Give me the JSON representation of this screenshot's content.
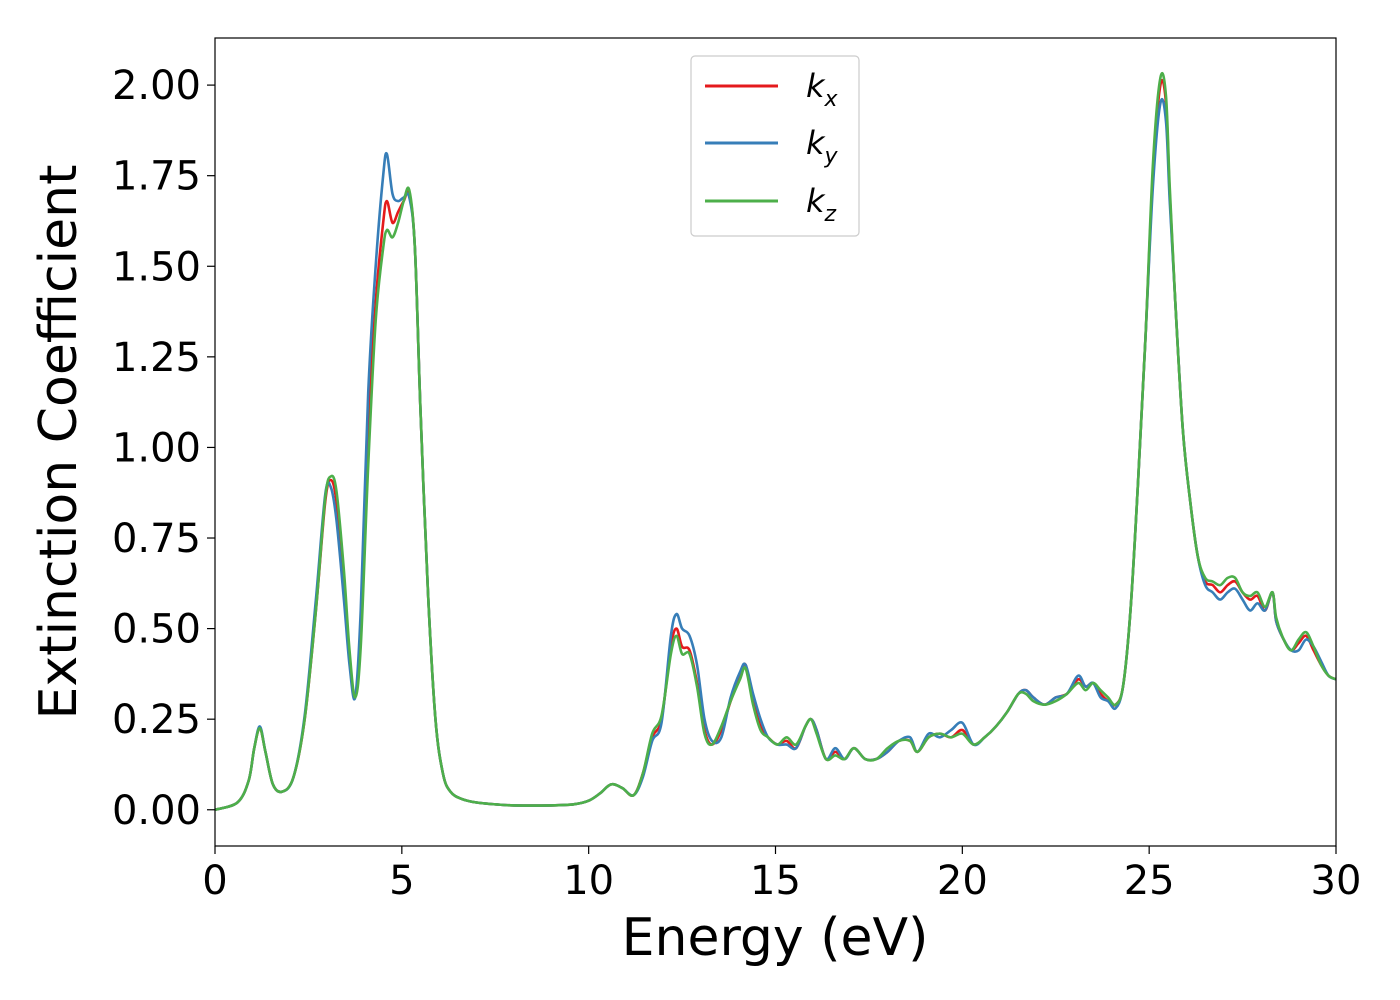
{
  "chart_data": {
    "type": "line",
    "xlabel": "Energy (eV)",
    "ylabel": "Extinction Coefficient",
    "xlim": [
      0,
      30
    ],
    "ylim": [
      -0.1,
      2.13
    ],
    "xticks": [
      "0",
      "5",
      "10",
      "15",
      "20",
      "25",
      "30"
    ],
    "yticks": [
      "0.00",
      "0.25",
      "0.50",
      "0.75",
      "1.00",
      "1.25",
      "1.50",
      "1.75",
      "2.00"
    ],
    "grid": false,
    "legend_position": "top-center",
    "legend": {
      "kx": {
        "base": "k",
        "sub": "x"
      },
      "ky": {
        "base": "k",
        "sub": "y"
      },
      "kz": {
        "base": "k",
        "sub": "z"
      }
    },
    "colors": {
      "kx": "#e41a1c",
      "ky": "#377eb8",
      "kz": "#4daf4a"
    },
    "series": [
      {
        "key": "kx",
        "x": [
          0,
          0.6,
          0.9,
          1.05,
          1.2,
          1.35,
          1.55,
          1.8,
          2.1,
          2.4,
          2.7,
          2.95,
          3.1,
          3.25,
          3.45,
          3.6,
          3.75,
          3.9,
          4.1,
          4.3,
          4.5,
          4.6,
          4.75,
          4.9,
          5.05,
          5.2,
          5.35,
          5.5,
          5.7,
          5.9,
          6.1,
          6.3,
          6.6,
          7,
          7.5,
          8,
          9,
          9.6,
          10,
          10.3,
          10.6,
          10.9,
          11.2,
          11.45,
          11.7,
          11.95,
          12.2,
          12.35,
          12.5,
          12.7,
          12.9,
          13.1,
          13.3,
          13.55,
          13.8,
          14.05,
          14.2,
          14.4,
          14.6,
          14.8,
          15.05,
          15.3,
          15.55,
          15.8,
          15.95,
          16.1,
          16.35,
          16.6,
          16.85,
          17.1,
          17.4,
          17.7,
          18,
          18.3,
          18.6,
          18.8,
          19.1,
          19.4,
          19.7,
          20,
          20.3,
          20.6,
          20.9,
          21.2,
          21.5,
          21.7,
          21.9,
          22.2,
          22.5,
          22.8,
          23.1,
          23.3,
          23.5,
          23.7,
          23.9,
          24.1,
          24.3,
          24.5,
          24.7,
          24.9,
          25.1,
          25.3,
          25.45,
          25.55,
          25.7,
          25.9,
          26.1,
          26.3,
          26.5,
          26.7,
          26.9,
          27.1,
          27.3,
          27.5,
          27.7,
          27.9,
          28.1,
          28.3,
          28.4,
          28.6,
          28.8,
          29,
          29.2,
          29.4,
          29.6,
          29.8,
          30
        ],
        "y": [
          0,
          0.02,
          0.08,
          0.17,
          0.225,
          0.16,
          0.07,
          0.05,
          0.09,
          0.25,
          0.55,
          0.85,
          0.91,
          0.85,
          0.62,
          0.42,
          0.31,
          0.5,
          1.05,
          1.4,
          1.62,
          1.68,
          1.62,
          1.65,
          1.68,
          1.7,
          1.55,
          1.1,
          0.6,
          0.25,
          0.1,
          0.05,
          0.03,
          0.02,
          0.015,
          0.012,
          0.012,
          0.015,
          0.025,
          0.045,
          0.07,
          0.06,
          0.04,
          0.1,
          0.2,
          0.25,
          0.45,
          0.5,
          0.45,
          0.44,
          0.35,
          0.22,
          0.18,
          0.22,
          0.3,
          0.37,
          0.4,
          0.3,
          0.23,
          0.2,
          0.18,
          0.19,
          0.17,
          0.23,
          0.25,
          0.22,
          0.14,
          0.16,
          0.14,
          0.17,
          0.14,
          0.14,
          0.16,
          0.19,
          0.19,
          0.16,
          0.2,
          0.21,
          0.2,
          0.22,
          0.18,
          0.2,
          0.23,
          0.27,
          0.32,
          0.33,
          0.31,
          0.29,
          0.31,
          0.32,
          0.36,
          0.34,
          0.35,
          0.32,
          0.3,
          0.29,
          0.34,
          0.55,
          0.9,
          1.3,
          1.75,
          2,
          1.95,
          1.7,
          1.4,
          1.05,
          0.85,
          0.7,
          0.63,
          0.62,
          0.6,
          0.62,
          0.63,
          0.6,
          0.58,
          0.59,
          0.55,
          0.6,
          0.52,
          0.47,
          0.44,
          0.46,
          0.48,
          0.44,
          0.4,
          0.37,
          0.36
        ]
      },
      {
        "key": "ky",
        "x": [
          0,
          0.6,
          0.9,
          1.05,
          1.2,
          1.35,
          1.55,
          1.8,
          2.1,
          2.4,
          2.7,
          2.95,
          3.1,
          3.25,
          3.45,
          3.6,
          3.75,
          3.9,
          4.1,
          4.3,
          4.5,
          4.6,
          4.75,
          4.9,
          5.05,
          5.2,
          5.35,
          5.5,
          5.7,
          5.9,
          6.1,
          6.3,
          6.6,
          7,
          7.5,
          8,
          9,
          9.6,
          10,
          10.3,
          10.6,
          10.9,
          11.2,
          11.45,
          11.7,
          11.95,
          12.2,
          12.35,
          12.5,
          12.7,
          12.9,
          13.1,
          13.3,
          13.55,
          13.8,
          14.05,
          14.2,
          14.4,
          14.6,
          14.8,
          15.05,
          15.3,
          15.55,
          15.8,
          15.95,
          16.1,
          16.35,
          16.6,
          16.85,
          17.1,
          17.4,
          17.7,
          18,
          18.3,
          18.6,
          18.8,
          19.1,
          19.4,
          19.7,
          20,
          20.3,
          20.6,
          20.9,
          21.2,
          21.5,
          21.7,
          21.9,
          22.2,
          22.5,
          22.8,
          23.1,
          23.3,
          23.5,
          23.7,
          23.9,
          24.1,
          24.3,
          24.5,
          24.7,
          24.9,
          25.1,
          25.3,
          25.45,
          25.55,
          25.7,
          25.9,
          26.1,
          26.3,
          26.5,
          26.7,
          26.9,
          27.1,
          27.3,
          27.5,
          27.7,
          27.9,
          28.1,
          28.3,
          28.4,
          28.6,
          28.8,
          29,
          29.2,
          29.4,
          29.6,
          29.8,
          30
        ],
        "y": [
          0,
          0.02,
          0.08,
          0.17,
          0.23,
          0.16,
          0.07,
          0.05,
          0.09,
          0.26,
          0.58,
          0.87,
          0.89,
          0.8,
          0.58,
          0.4,
          0.31,
          0.55,
          1.15,
          1.5,
          1.75,
          1.81,
          1.7,
          1.68,
          1.69,
          1.69,
          1.55,
          1.1,
          0.6,
          0.25,
          0.1,
          0.05,
          0.03,
          0.02,
          0.015,
          0.012,
          0.012,
          0.015,
          0.025,
          0.045,
          0.07,
          0.06,
          0.04,
          0.09,
          0.19,
          0.24,
          0.48,
          0.54,
          0.5,
          0.48,
          0.4,
          0.25,
          0.19,
          0.2,
          0.31,
          0.38,
          0.4,
          0.32,
          0.25,
          0.2,
          0.18,
          0.18,
          0.17,
          0.23,
          0.25,
          0.22,
          0.14,
          0.17,
          0.14,
          0.17,
          0.14,
          0.14,
          0.16,
          0.19,
          0.2,
          0.16,
          0.21,
          0.2,
          0.22,
          0.24,
          0.18,
          0.2,
          0.23,
          0.27,
          0.32,
          0.33,
          0.31,
          0.29,
          0.31,
          0.32,
          0.37,
          0.34,
          0.35,
          0.31,
          0.3,
          0.28,
          0.34,
          0.55,
          0.9,
          1.3,
          1.72,
          1.95,
          1.9,
          1.68,
          1.4,
          1.05,
          0.85,
          0.7,
          0.62,
          0.6,
          0.58,
          0.6,
          0.61,
          0.58,
          0.55,
          0.57,
          0.55,
          0.6,
          0.52,
          0.47,
          0.44,
          0.44,
          0.47,
          0.45,
          0.41,
          0.37,
          0.36
        ]
      },
      {
        "key": "kz",
        "x": [
          0,
          0.6,
          0.9,
          1.05,
          1.2,
          1.35,
          1.55,
          1.8,
          2.1,
          2.4,
          2.7,
          2.95,
          3.1,
          3.25,
          3.45,
          3.6,
          3.75,
          3.9,
          4.1,
          4.3,
          4.5,
          4.6,
          4.75,
          4.9,
          5.05,
          5.2,
          5.35,
          5.5,
          5.7,
          5.9,
          6.1,
          6.3,
          6.6,
          7,
          7.5,
          8,
          9,
          9.6,
          10,
          10.3,
          10.6,
          10.9,
          11.2,
          11.45,
          11.7,
          11.95,
          12.2,
          12.35,
          12.5,
          12.7,
          12.9,
          13.1,
          13.3,
          13.55,
          13.8,
          14.05,
          14.2,
          14.4,
          14.6,
          14.8,
          15.05,
          15.3,
          15.55,
          15.8,
          15.95,
          16.1,
          16.35,
          16.6,
          16.85,
          17.1,
          17.4,
          17.7,
          18,
          18.3,
          18.6,
          18.8,
          19.1,
          19.4,
          19.7,
          20,
          20.3,
          20.6,
          20.9,
          21.2,
          21.5,
          21.7,
          21.9,
          22.2,
          22.5,
          22.8,
          23.1,
          23.3,
          23.5,
          23.7,
          23.9,
          24.1,
          24.3,
          24.5,
          24.7,
          24.9,
          25.1,
          25.3,
          25.45,
          25.55,
          25.7,
          25.9,
          26.1,
          26.3,
          26.5,
          26.7,
          26.9,
          27.1,
          27.3,
          27.5,
          27.7,
          27.9,
          28.1,
          28.3,
          28.4,
          28.6,
          28.8,
          29,
          29.2,
          29.4,
          29.6,
          29.8,
          30
        ],
        "y": [
          0,
          0.02,
          0.08,
          0.17,
          0.225,
          0.16,
          0.07,
          0.05,
          0.09,
          0.25,
          0.55,
          0.86,
          0.92,
          0.88,
          0.66,
          0.44,
          0.31,
          0.45,
          0.95,
          1.35,
          1.55,
          1.6,
          1.58,
          1.62,
          1.68,
          1.71,
          1.55,
          1.1,
          0.6,
          0.25,
          0.1,
          0.05,
          0.03,
          0.02,
          0.015,
          0.012,
          0.012,
          0.015,
          0.025,
          0.045,
          0.07,
          0.06,
          0.04,
          0.1,
          0.21,
          0.26,
          0.43,
          0.48,
          0.43,
          0.43,
          0.34,
          0.21,
          0.18,
          0.23,
          0.3,
          0.36,
          0.39,
          0.29,
          0.22,
          0.2,
          0.18,
          0.2,
          0.18,
          0.23,
          0.25,
          0.21,
          0.14,
          0.15,
          0.14,
          0.17,
          0.14,
          0.14,
          0.17,
          0.19,
          0.19,
          0.16,
          0.2,
          0.21,
          0.2,
          0.21,
          0.18,
          0.2,
          0.23,
          0.27,
          0.32,
          0.32,
          0.3,
          0.29,
          0.3,
          0.32,
          0.35,
          0.33,
          0.35,
          0.33,
          0.31,
          0.29,
          0.34,
          0.55,
          0.9,
          1.3,
          1.78,
          2.02,
          1.97,
          1.72,
          1.4,
          1.05,
          0.85,
          0.7,
          0.64,
          0.63,
          0.62,
          0.64,
          0.64,
          0.6,
          0.59,
          0.6,
          0.56,
          0.6,
          0.53,
          0.47,
          0.44,
          0.47,
          0.49,
          0.45,
          0.4,
          0.37,
          0.36
        ]
      }
    ]
  }
}
